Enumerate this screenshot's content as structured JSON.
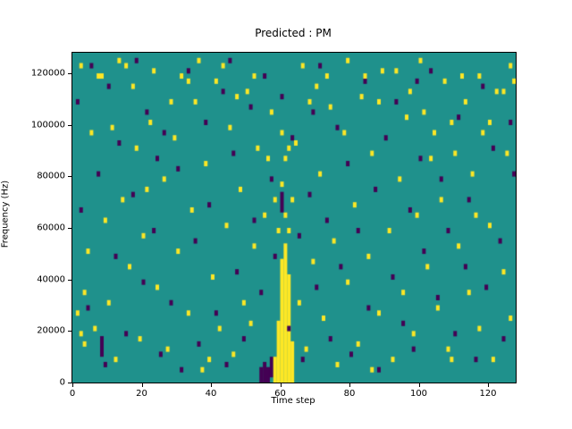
{
  "chart_data": {
    "type": "heatmap",
    "title": "Predicted : PM",
    "xlabel": "Time step",
    "ylabel": "Frequency (Hz)",
    "xlim": [
      0,
      128
    ],
    "ylim": [
      0,
      128000
    ],
    "x_ticks": [
      0,
      20,
      40,
      60,
      80,
      100,
      120
    ],
    "y_ticks": [
      0,
      20000,
      40000,
      60000,
      80000,
      100000,
      120000
    ],
    "grid_cols": 128,
    "grid_rows": 64,
    "colors": {
      "background": "#1f918c",
      "high": "#fde725",
      "low": "#440154",
      "axis": "#000000"
    },
    "yellow_spans": [
      {
        "t": 58,
        "f0": 0,
        "f1": 8000
      },
      {
        "t": 59,
        "f0": 0,
        "f1": 22000
      },
      {
        "t": 60,
        "f0": 0,
        "f1": 46000
      },
      {
        "t": 61,
        "f0": 0,
        "f1": 52000
      },
      {
        "t": 62,
        "f0": 0,
        "f1": 40000
      },
      {
        "t": 63,
        "f0": 0,
        "f1": 14000
      }
    ],
    "purple_spans": [
      {
        "t": 54,
        "f0": 0,
        "f1": 4000
      },
      {
        "t": 55,
        "f0": 0,
        "f1": 6000
      },
      {
        "t": 56,
        "f0": 0,
        "f1": 4000
      },
      {
        "t": 57,
        "f0": 2000,
        "f1": 8000
      },
      {
        "t": 8,
        "f0": 10000,
        "f1": 16000
      },
      {
        "t": 60,
        "f0": 66000,
        "f1": 72000
      }
    ],
    "yellow_cells": [
      [
        2,
        122000
      ],
      [
        7,
        118000
      ],
      [
        13,
        124000
      ],
      [
        17,
        114000
      ],
      [
        23,
        120000
      ],
      [
        28,
        108000
      ],
      [
        33,
        116000
      ],
      [
        36,
        124000
      ],
      [
        43,
        122000
      ],
      [
        47,
        110000
      ],
      [
        52,
        118000
      ],
      [
        57,
        104000
      ],
      [
        60,
        96000
      ],
      [
        62,
        90000
      ],
      [
        66,
        122000
      ],
      [
        70,
        114000
      ],
      [
        74,
        106000
      ],
      [
        79,
        124000
      ],
      [
        84,
        118000
      ],
      [
        88,
        108000
      ],
      [
        93,
        120000
      ],
      [
        97,
        112000
      ],
      [
        101,
        104000
      ],
      [
        104,
        96000
      ],
      [
        107,
        116000
      ],
      [
        110,
        88000
      ],
      [
        113,
        108000
      ],
      [
        117,
        118000
      ],
      [
        120,
        100000
      ],
      [
        124,
        112000
      ],
      [
        126,
        122000
      ],
      [
        3,
        14000
      ],
      [
        3,
        34000
      ],
      [
        5,
        96000
      ],
      [
        6,
        20000
      ],
      [
        8,
        118000
      ],
      [
        9,
        62000
      ],
      [
        10,
        30000
      ],
      [
        11,
        98000
      ],
      [
        12,
        8000
      ],
      [
        14,
        70000
      ],
      [
        15,
        122000
      ],
      [
        16,
        44000
      ],
      [
        18,
        90000
      ],
      [
        19,
        16000
      ],
      [
        20,
        56000
      ],
      [
        22,
        100000
      ],
      [
        24,
        36000
      ],
      [
        26,
        78000
      ],
      [
        27,
        12000
      ],
      [
        29,
        94000
      ],
      [
        30,
        50000
      ],
      [
        31,
        118000
      ],
      [
        33,
        26000
      ],
      [
        34,
        66000
      ],
      [
        35,
        108000
      ],
      [
        37,
        4000
      ],
      [
        38,
        84000
      ],
      [
        40,
        40000
      ],
      [
        41,
        116000
      ],
      [
        42,
        20000
      ],
      [
        44,
        60000
      ],
      [
        45,
        98000
      ],
      [
        46,
        10000
      ],
      [
        48,
        74000
      ],
      [
        49,
        30000
      ],
      [
        50,
        112000
      ],
      [
        52,
        52000
      ],
      [
        53,
        90000
      ],
      [
        55,
        64000
      ],
      [
        56,
        86000
      ],
      [
        58,
        70000
      ],
      [
        59,
        58000
      ],
      [
        60,
        76000
      ],
      [
        61,
        64000
      ],
      [
        61,
        86000
      ],
      [
        62,
        58000
      ],
      [
        63,
        70000
      ],
      [
        64,
        92000
      ],
      [
        65,
        30000
      ],
      [
        67,
        12000
      ],
      [
        68,
        108000
      ],
      [
        69,
        46000
      ],
      [
        71,
        80000
      ],
      [
        72,
        24000
      ],
      [
        73,
        118000
      ],
      [
        75,
        54000
      ],
      [
        76,
        6000
      ],
      [
        78,
        96000
      ],
      [
        79,
        38000
      ],
      [
        81,
        68000
      ],
      [
        82,
        14000
      ],
      [
        83,
        110000
      ],
      [
        85,
        48000
      ],
      [
        86,
        88000
      ],
      [
        88,
        26000
      ],
      [
        89,
        120000
      ],
      [
        91,
        58000
      ],
      [
        92,
        8000
      ],
      [
        94,
        78000
      ],
      [
        95,
        34000
      ],
      [
        96,
        102000
      ],
      [
        98,
        18000
      ],
      [
        99,
        64000
      ],
      [
        100,
        124000
      ],
      [
        102,
        44000
      ],
      [
        103,
        86000
      ],
      [
        105,
        28000
      ],
      [
        106,
        70000
      ],
      [
        108,
        12000
      ],
      [
        109,
        100000
      ],
      [
        111,
        52000
      ],
      [
        112,
        118000
      ],
      [
        114,
        34000
      ],
      [
        115,
        80000
      ],
      [
        117,
        20000
      ],
      [
        118,
        96000
      ],
      [
        120,
        60000
      ],
      [
        121,
        8000
      ],
      [
        122,
        112000
      ],
      [
        124,
        42000
      ],
      [
        125,
        88000
      ],
      [
        126,
        24000
      ],
      [
        127,
        116000
      ],
      [
        1,
        26000
      ],
      [
        2,
        18000
      ],
      [
        4,
        50000
      ],
      [
        21,
        74000
      ],
      [
        39,
        8000
      ],
      [
        51,
        22000
      ],
      [
        86,
        4000
      ],
      [
        109,
        8000
      ],
      [
        116,
        64000
      ]
    ],
    "purple_cells": [
      [
        1,
        108000
      ],
      [
        2,
        66000
      ],
      [
        4,
        28000
      ],
      [
        5,
        122000
      ],
      [
        7,
        80000
      ],
      [
        9,
        6000
      ],
      [
        10,
        114000
      ],
      [
        12,
        48000
      ],
      [
        13,
        92000
      ],
      [
        15,
        18000
      ],
      [
        17,
        72000
      ],
      [
        18,
        124000
      ],
      [
        20,
        38000
      ],
      [
        21,
        104000
      ],
      [
        23,
        58000
      ],
      [
        25,
        10000
      ],
      [
        26,
        96000
      ],
      [
        28,
        30000
      ],
      [
        30,
        82000
      ],
      [
        31,
        4000
      ],
      [
        33,
        120000
      ],
      [
        35,
        54000
      ],
      [
        36,
        14000
      ],
      [
        38,
        100000
      ],
      [
        39,
        68000
      ],
      [
        41,
        26000
      ],
      [
        43,
        112000
      ],
      [
        44,
        6000
      ],
      [
        46,
        88000
      ],
      [
        47,
        42000
      ],
      [
        49,
        16000
      ],
      [
        51,
        106000
      ],
      [
        52,
        62000
      ],
      [
        54,
        34000
      ],
      [
        55,
        118000
      ],
      [
        57,
        78000
      ],
      [
        58,
        48000
      ],
      [
        60,
        110000
      ],
      [
        62,
        20000
      ],
      [
        63,
        94000
      ],
      [
        65,
        56000
      ],
      [
        66,
        8000
      ],
      [
        68,
        72000
      ],
      [
        70,
        36000
      ],
      [
        71,
        122000
      ],
      [
        73,
        62000
      ],
      [
        74,
        16000
      ],
      [
        76,
        98000
      ],
      [
        77,
        44000
      ],
      [
        79,
        84000
      ],
      [
        80,
        10000
      ],
      [
        82,
        58000
      ],
      [
        84,
        116000
      ],
      [
        85,
        28000
      ],
      [
        87,
        74000
      ],
      [
        88,
        4000
      ],
      [
        90,
        94000
      ],
      [
        92,
        40000
      ],
      [
        93,
        108000
      ],
      [
        95,
        22000
      ],
      [
        97,
        66000
      ],
      [
        98,
        12000
      ],
      [
        100,
        86000
      ],
      [
        101,
        50000
      ],
      [
        103,
        120000
      ],
      [
        105,
        32000
      ],
      [
        106,
        78000
      ],
      [
        108,
        58000
      ],
      [
        110,
        18000
      ],
      [
        111,
        102000
      ],
      [
        113,
        44000
      ],
      [
        114,
        70000
      ],
      [
        116,
        8000
      ],
      [
        118,
        114000
      ],
      [
        119,
        36000
      ],
      [
        121,
        90000
      ],
      [
        123,
        54000
      ],
      [
        124,
        16000
      ],
      [
        126,
        100000
      ],
      [
        127,
        80000
      ],
      [
        24,
        86000
      ],
      [
        45,
        124000
      ],
      [
        69,
        104000
      ],
      [
        99,
        116000
      ]
    ]
  }
}
